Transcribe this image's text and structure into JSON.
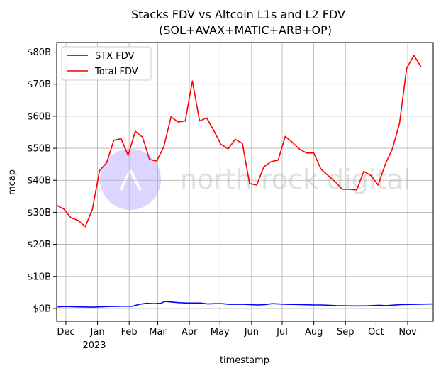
{
  "chart_data": {
    "type": "line",
    "title": "Stacks FDV vs Altcoin L1s and L2 FDV",
    "subtitle": "(SOL+AVAX+MATIC+ARB+OP)",
    "xlabel": "timestamp",
    "ylabel": "mcap",
    "year_label": "2023",
    "watermark": "north rock digital",
    "grid": true,
    "legend_position": "top-left",
    "xlim": [
      "2022-11-22",
      "2023-11-26"
    ],
    "ylim": [
      -4,
      83
    ],
    "x_ticks": [
      {
        "label": "Dec",
        "date": "2022-12-01"
      },
      {
        "label": "Jan",
        "date": "2023-01-01"
      },
      {
        "label": "Feb",
        "date": "2023-02-01"
      },
      {
        "label": "Mar",
        "date": "2023-03-01"
      },
      {
        "label": "Apr",
        "date": "2023-04-01"
      },
      {
        "label": "May",
        "date": "2023-05-01"
      },
      {
        "label": "Jun",
        "date": "2023-06-01"
      },
      {
        "label": "Jul",
        "date": "2023-07-01"
      },
      {
        "label": "Aug",
        "date": "2023-08-01"
      },
      {
        "label": "Sep",
        "date": "2023-09-01"
      },
      {
        "label": "Oct",
        "date": "2023-10-01"
      },
      {
        "label": "Nov",
        "date": "2023-11-01"
      }
    ],
    "y_ticks": [
      {
        "label": "$0B",
        "value": 0
      },
      {
        "label": "$10B",
        "value": 10
      },
      {
        "label": "$20B",
        "value": 20
      },
      {
        "label": "$30B",
        "value": 30
      },
      {
        "label": "$40B",
        "value": 40
      },
      {
        "label": "$50B",
        "value": 50
      },
      {
        "label": "$60B",
        "value": 60
      },
      {
        "label": "$70B",
        "value": 70
      },
      {
        "label": "$80B",
        "value": 80
      }
    ],
    "series": [
      {
        "name": "STX FDV",
        "color": "#0000ff",
        "points": [
          [
            "2022-11-23",
            0.5
          ],
          [
            "2022-11-30",
            0.6
          ],
          [
            "2022-12-14",
            0.5
          ],
          [
            "2022-12-28",
            0.4
          ],
          [
            "2023-01-11",
            0.6
          ],
          [
            "2023-01-25",
            0.7
          ],
          [
            "2023-02-04",
            0.7
          ],
          [
            "2023-02-11",
            1.3
          ],
          [
            "2023-02-18",
            1.6
          ],
          [
            "2023-02-25",
            1.5
          ],
          [
            "2023-03-04",
            1.6
          ],
          [
            "2023-03-08",
            2.2
          ],
          [
            "2023-03-15",
            2.0
          ],
          [
            "2023-03-22",
            1.8
          ],
          [
            "2023-03-29",
            1.7
          ],
          [
            "2023-04-12",
            1.7
          ],
          [
            "2023-04-19",
            1.4
          ],
          [
            "2023-04-26",
            1.5
          ],
          [
            "2023-05-03",
            1.5
          ],
          [
            "2023-05-10",
            1.3
          ],
          [
            "2023-05-24",
            1.3
          ],
          [
            "2023-06-07",
            1.1
          ],
          [
            "2023-06-14",
            1.2
          ],
          [
            "2023-06-21",
            1.5
          ],
          [
            "2023-07-05",
            1.3
          ],
          [
            "2023-07-19",
            1.2
          ],
          [
            "2023-08-02",
            1.1
          ],
          [
            "2023-08-09",
            1.1
          ],
          [
            "2023-08-23",
            0.9
          ],
          [
            "2023-09-06",
            0.8
          ],
          [
            "2023-09-20",
            0.8
          ],
          [
            "2023-10-04",
            1.0
          ],
          [
            "2023-10-11",
            0.9
          ],
          [
            "2023-10-25",
            1.2
          ],
          [
            "2023-11-08",
            1.3
          ],
          [
            "2023-11-26",
            1.4
          ]
        ]
      },
      {
        "name": "Total FDV",
        "color": "#ff0000",
        "points": [
          [
            "2022-11-22",
            32.2
          ],
          [
            "2022-11-29",
            31.0
          ],
          [
            "2022-12-06",
            28.3
          ],
          [
            "2022-12-13",
            27.5
          ],
          [
            "2022-12-20",
            25.5
          ],
          [
            "2022-12-27",
            31.0
          ],
          [
            "2023-01-03",
            43.0
          ],
          [
            "2023-01-10",
            45.5
          ],
          [
            "2023-01-17",
            52.5
          ],
          [
            "2023-01-24",
            53.0
          ],
          [
            "2023-01-31",
            47.8
          ],
          [
            "2023-02-07",
            55.3
          ],
          [
            "2023-02-14",
            53.5
          ],
          [
            "2023-02-21",
            46.5
          ],
          [
            "2023-02-28",
            46.0
          ],
          [
            "2023-03-07",
            50.5
          ],
          [
            "2023-03-14",
            59.8
          ],
          [
            "2023-03-21",
            58.2
          ],
          [
            "2023-03-28",
            58.5
          ],
          [
            "2023-04-04",
            71.0
          ],
          [
            "2023-04-11",
            58.5
          ],
          [
            "2023-04-18",
            59.5
          ],
          [
            "2023-04-25",
            55.5
          ],
          [
            "2023-05-02",
            51.2
          ],
          [
            "2023-05-09",
            49.8
          ],
          [
            "2023-05-16",
            52.8
          ],
          [
            "2023-05-23",
            51.5
          ],
          [
            "2023-05-30",
            39.0
          ],
          [
            "2023-06-06",
            38.5
          ],
          [
            "2023-06-13",
            44.2
          ],
          [
            "2023-06-20",
            45.8
          ],
          [
            "2023-06-27",
            46.3
          ],
          [
            "2023-07-04",
            53.7
          ],
          [
            "2023-07-11",
            51.8
          ],
          [
            "2023-07-18",
            49.7
          ],
          [
            "2023-07-25",
            48.5
          ],
          [
            "2023-08-01",
            48.5
          ],
          [
            "2023-08-08",
            43.5
          ],
          [
            "2023-08-15",
            41.5
          ],
          [
            "2023-08-22",
            39.5
          ],
          [
            "2023-08-29",
            37.2
          ],
          [
            "2023-09-05",
            37.2
          ],
          [
            "2023-09-12",
            37.0
          ],
          [
            "2023-09-19",
            42.8
          ],
          [
            "2023-09-26",
            41.5
          ],
          [
            "2023-10-03",
            38.5
          ],
          [
            "2023-10-10",
            45.0
          ],
          [
            "2023-10-17",
            49.8
          ],
          [
            "2023-10-24",
            57.8
          ],
          [
            "2023-10-31",
            75.0
          ],
          [
            "2023-11-07",
            79.0
          ],
          [
            "2023-11-14",
            75.5
          ]
        ]
      }
    ]
  }
}
